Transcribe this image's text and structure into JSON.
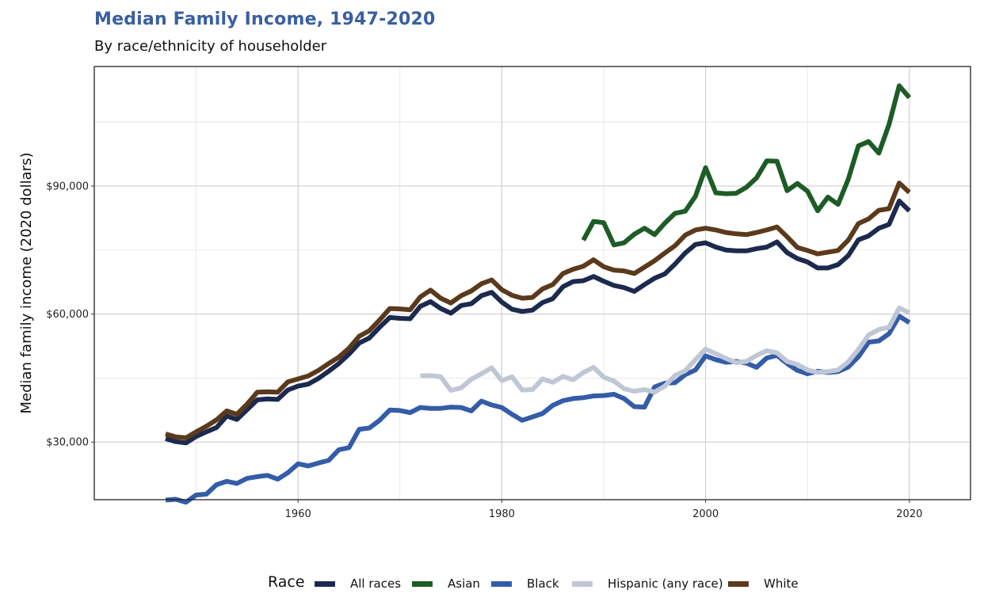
{
  "header": {
    "title": "Median Family Income, 1947-2020",
    "subtitle": "By race/ethnicity of householder"
  },
  "legend": {
    "title": "Race"
  },
  "chart_data": {
    "type": "line",
    "title": "Median Family Income, 1947-2020",
    "subtitle": "By race/ethnicity of householder",
    "xlabel": "",
    "ylabel": "Median family income (2020 dollars)",
    "xlim": [
      1940,
      2026
    ],
    "ylim": [
      16500,
      118000
    ],
    "x_ticks": [
      1960,
      1980,
      2000,
      2020
    ],
    "x_tick_labels": [
      "1960",
      "1980",
      "2000",
      "2020"
    ],
    "y_ticks": [
      30000,
      60000,
      90000
    ],
    "y_tick_labels": [
      "$30,000",
      "$60,000",
      "$90,000"
    ],
    "grid": true,
    "legend_position": "bottom",
    "series": [
      {
        "name": "All races",
        "color": "#1c2a4e",
        "x": [
          1947,
          1948,
          1949,
          1950,
          1951,
          1952,
          1953,
          1954,
          1955,
          1956,
          1957,
          1958,
          1959,
          1960,
          1961,
          1962,
          1963,
          1964,
          1965,
          1966,
          1967,
          1968,
          1969,
          1970,
          1971,
          1972,
          1973,
          1974,
          1975,
          1976,
          1977,
          1978,
          1979,
          1980,
          1981,
          1982,
          1983,
          1984,
          1985,
          1986,
          1987,
          1988,
          1989,
          1990,
          1991,
          1992,
          1993,
          1994,
          1995,
          1996,
          1997,
          1998,
          1999,
          2000,
          2001,
          2002,
          2003,
          2004,
          2005,
          2006,
          2007,
          2008,
          2009,
          2010,
          2011,
          2012,
          2013,
          2014,
          2015,
          2016,
          2017,
          2018,
          2019,
          2020
        ],
        "y": [
          30800,
          30100,
          29800,
          31300,
          32400,
          33400,
          36100,
          35300,
          37600,
          39900,
          40100,
          40000,
          42200,
          43100,
          43600,
          44900,
          46600,
          48400,
          50600,
          53200,
          54400,
          56900,
          59200,
          59000,
          58900,
          61800,
          62900,
          61300,
          60200,
          62000,
          62400,
          64300,
          65100,
          62800,
          61100,
          60600,
          60900,
          62700,
          63600,
          66400,
          67600,
          67800,
          68800,
          67700,
          66700,
          66200,
          65300,
          66900,
          68400,
          69400,
          71700,
          74300,
          76300,
          76700,
          75700,
          75000,
          74800,
          74800,
          75300,
          75700,
          76900,
          74400,
          73000,
          72200,
          70800,
          70800,
          71600,
          73700,
          77400,
          78300,
          80100,
          81000,
          86500,
          84200
        ]
      },
      {
        "name": "Asian",
        "color": "#1e5c26",
        "x": [
          1988,
          1989,
          1990,
          1991,
          1992,
          1993,
          1994,
          1995,
          1996,
          1997,
          1998,
          1999,
          2000,
          2001,
          2002,
          2003,
          2004,
          2005,
          2006,
          2007,
          2008,
          2009,
          2010,
          2011,
          2012,
          2013,
          2014,
          2015,
          2016,
          2017,
          2018,
          2019,
          2020
        ],
        "y": [
          77300,
          81700,
          81400,
          76200,
          76700,
          78700,
          80100,
          78600,
          81300,
          83600,
          84100,
          87600,
          94300,
          88400,
          88200,
          88300,
          89700,
          91900,
          95900,
          95800,
          88900,
          90600,
          88800,
          84200,
          87400,
          85700,
          91600,
          99400,
          100400,
          97700,
          104400,
          113500,
          110700
        ]
      },
      {
        "name": "Black",
        "color": "#345ca8",
        "x": [
          1947,
          1948,
          1949,
          1950,
          1951,
          1952,
          1953,
          1954,
          1955,
          1956,
          1957,
          1958,
          1959,
          1960,
          1961,
          1962,
          1963,
          1964,
          1965,
          1966,
          1967,
          1968,
          1969,
          1970,
          1971,
          1972,
          1973,
          1974,
          1975,
          1976,
          1977,
          1978,
          1979,
          1980,
          1981,
          1982,
          1983,
          1984,
          1985,
          1986,
          1987,
          1988,
          1989,
          1990,
          1991,
          1992,
          1993,
          1994,
          1995,
          1996,
          1997,
          1998,
          1999,
          2000,
          2001,
          2002,
          2003,
          2004,
          2005,
          2006,
          2007,
          2008,
          2009,
          2010,
          2011,
          2012,
          2013,
          2014,
          2015,
          2016,
          2017,
          2018,
          2019,
          2020
        ],
        "y": [
          16400,
          16600,
          15900,
          17600,
          17800,
          20000,
          20800,
          20300,
          21500,
          21900,
          22200,
          21300,
          22800,
          24900,
          24400,
          25100,
          25700,
          28200,
          28700,
          33000,
          33300,
          35100,
          37500,
          37400,
          36900,
          38100,
          37900,
          37900,
          38200,
          38100,
          37300,
          39600,
          38700,
          38100,
          36500,
          35100,
          35900,
          36700,
          38600,
          39700,
          40200,
          40400,
          40800,
          40900,
          41200,
          40200,
          38300,
          38200,
          42900,
          43800,
          43900,
          45800,
          46900,
          50200,
          49300,
          48700,
          48900,
          48500,
          47500,
          49700,
          50300,
          48400,
          46800,
          46000,
          46600,
          46300,
          46500,
          47600,
          50000,
          53400,
          53700,
          55400,
          59500,
          58000
        ]
      },
      {
        "name": "Hispanic (any race)",
        "color": "#bfc7d5",
        "x": [
          1972,
          1973,
          1974,
          1975,
          1976,
          1977,
          1978,
          1979,
          1980,
          1981,
          1982,
          1983,
          1984,
          1985,
          1986,
          1987,
          1988,
          1989,
          1990,
          1991,
          1992,
          1993,
          1994,
          1995,
          1996,
          1997,
          1998,
          1999,
          2000,
          2001,
          2002,
          2003,
          2004,
          2005,
          2006,
          2007,
          2008,
          2009,
          2010,
          2011,
          2012,
          2013,
          2014,
          2015,
          2016,
          2017,
          2018,
          2019,
          2020
        ],
        "y": [
          45500,
          45600,
          45300,
          42100,
          42700,
          44700,
          46000,
          47400,
          44400,
          45300,
          42200,
          42300,
          44800,
          44000,
          45400,
          44600,
          46300,
          47500,
          45200,
          44300,
          42500,
          41900,
          42300,
          41700,
          43100,
          45600,
          46700,
          49300,
          51800,
          50700,
          49600,
          48600,
          48900,
          50300,
          51400,
          50900,
          48900,
          48200,
          46900,
          46300,
          46500,
          46900,
          48800,
          51700,
          55100,
          56400,
          56900,
          61400,
          60300
        ]
      },
      {
        "name": "White",
        "color": "#5b3a1c",
        "x": [
          1947,
          1948,
          1949,
          1950,
          1951,
          1952,
          1953,
          1954,
          1955,
          1956,
          1957,
          1958,
          1959,
          1960,
          1961,
          1962,
          1963,
          1964,
          1965,
          1966,
          1967,
          1968,
          1969,
          1970,
          1971,
          1972,
          1973,
          1974,
          1975,
          1976,
          1977,
          1978,
          1979,
          1980,
          1981,
          1982,
          1983,
          1984,
          1985,
          1986,
          1987,
          1988,
          1989,
          1990,
          1991,
          1992,
          1993,
          1994,
          1995,
          1996,
          1997,
          1998,
          1999,
          2000,
          2001,
          2002,
          2003,
          2004,
          2005,
          2006,
          2007,
          2008,
          2009,
          2010,
          2011,
          2012,
          2013,
          2014,
          2015,
          2016,
          2017,
          2018,
          2019,
          2020
        ],
        "y": [
          31900,
          31200,
          31000,
          32400,
          33700,
          35200,
          37300,
          36500,
          38900,
          41700,
          41800,
          41700,
          44100,
          44800,
          45500,
          46800,
          48400,
          49900,
          52000,
          54800,
          56100,
          58600,
          61300,
          61200,
          61000,
          64000,
          65600,
          63700,
          62600,
          64300,
          65400,
          67100,
          68000,
          65700,
          64400,
          63700,
          63900,
          65900,
          66900,
          69500,
          70500,
          71200,
          72700,
          71100,
          70300,
          70100,
          69500,
          71000,
          72500,
          74300,
          76000,
          78500,
          79700,
          80100,
          79700,
          79100,
          78800,
          78600,
          79100,
          79700,
          80400,
          78100,
          75600,
          74900,
          74100,
          74500,
          74900,
          77300,
          81200,
          82300,
          84300,
          84700,
          90700,
          88500
        ]
      }
    ]
  }
}
